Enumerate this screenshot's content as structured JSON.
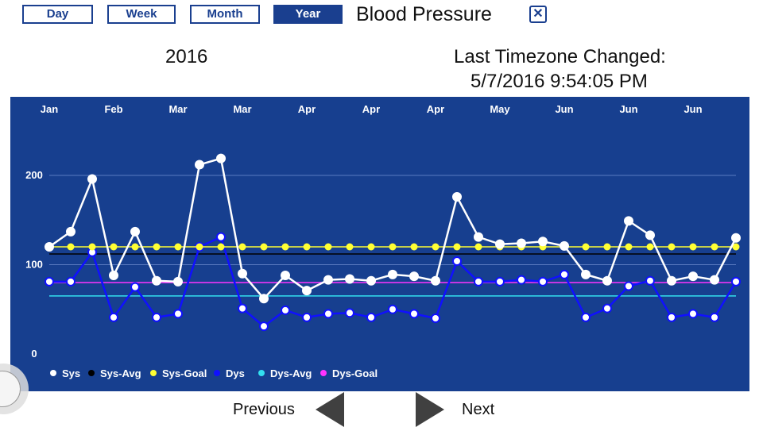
{
  "tabs": [
    {
      "label": "Day",
      "active": false
    },
    {
      "label": "Week",
      "active": false
    },
    {
      "label": "Month",
      "active": false
    },
    {
      "label": "Year",
      "active": true
    }
  ],
  "title": "Blood Pressure",
  "close_icon": "x-box-icon",
  "year": "2016",
  "timezone": {
    "label": "Last Timezone Changed:",
    "value": "5/7/2016 9:54:05 PM"
  },
  "nav": {
    "previous": "Previous",
    "next": "Next"
  },
  "colors": {
    "chart_bg": "#173f8f",
    "accent": "#1a3f8f"
  },
  "chart_data": {
    "type": "line",
    "x_tick_labels": [
      "Jan",
      "Feb",
      "Mar",
      "Mar",
      "Apr",
      "Apr",
      "Apr",
      "May",
      "Jun",
      "Jun",
      "Jun"
    ],
    "y_ticks": [
      0,
      100,
      200
    ],
    "ylim": [
      0,
      240
    ],
    "grid": true,
    "legend_position": "bottom-left",
    "series": [
      {
        "name": "Sys",
        "color": "#ffffff",
        "markers": true,
        "values": [
          120,
          137,
          196,
          88,
          137,
          82,
          81,
          212,
          219,
          90,
          62,
          88,
          71,
          83,
          84,
          82,
          89,
          87,
          82,
          176,
          131,
          123,
          124,
          126,
          121,
          89,
          82,
          149,
          133,
          82,
          87,
          83,
          130
        ]
      },
      {
        "name": "Sys-Avg",
        "color": "#000000",
        "constant": 112
      },
      {
        "name": "Sys-Goal",
        "color": "#ffff33",
        "constant": 120,
        "markers": true
      },
      {
        "name": "Dys",
        "color": "#1010ff",
        "markers": true,
        "values": [
          81,
          81,
          114,
          41,
          75,
          41,
          45,
          120,
          131,
          51,
          31,
          49,
          41,
          45,
          46,
          41,
          50,
          45,
          40,
          104,
          81,
          81,
          83,
          81,
          89,
          41,
          51,
          76,
          82,
          41,
          45,
          41,
          81
        ]
      },
      {
        "name": "Dys-Avg",
        "color": "#33e0f0",
        "constant": 65
      },
      {
        "name": "Dys-Goal",
        "color": "#ff33ff",
        "constant": 80
      }
    ]
  }
}
